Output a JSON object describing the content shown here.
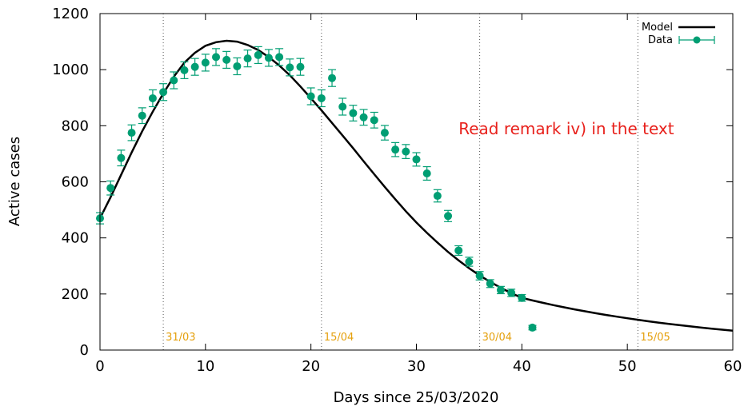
{
  "chart_data": {
    "type": "scatter",
    "xlabel": "Days since 25/03/2020",
    "ylabel": "Active cases",
    "xlim": [
      0,
      60
    ],
    "ylim": [
      0,
      1200
    ],
    "xticks": [
      0,
      10,
      20,
      30,
      40,
      50,
      60
    ],
    "yticks": [
      0,
      200,
      400,
      600,
      800,
      1000,
      1200
    ],
    "grid": false,
    "legend_position": "top-right",
    "annotation": {
      "text": "Read remark iv) in the text",
      "color": "#e8211c",
      "x": 34,
      "y": 790
    },
    "date_markers": [
      {
        "day": 6,
        "label": "31/03"
      },
      {
        "day": 21,
        "label": "15/04"
      },
      {
        "day": 36,
        "label": "30/04"
      },
      {
        "day": 51,
        "label": "15/05"
      }
    ],
    "date_marker_color": "#e5a00d",
    "series": [
      {
        "name": "Model",
        "kind": "line",
        "color": "#000000",
        "x": [
          0,
          1,
          2,
          3,
          4,
          5,
          6,
          7,
          8,
          9,
          10,
          11,
          12,
          13,
          14,
          15,
          16,
          17,
          18,
          19,
          20,
          21,
          22,
          23,
          24,
          25,
          26,
          27,
          28,
          29,
          30,
          31,
          32,
          33,
          34,
          35,
          36,
          37,
          38,
          39,
          40,
          42,
          44,
          46,
          48,
          50,
          52,
          54,
          56,
          58,
          60
        ],
        "y": [
          470,
          545,
          625,
          705,
          780,
          850,
          915,
          975,
          1025,
          1060,
          1085,
          1098,
          1103,
          1100,
          1088,
          1070,
          1045,
          1015,
          980,
          940,
          898,
          855,
          810,
          765,
          720,
          673,
          627,
          582,
          538,
          495,
          455,
          418,
          383,
          350,
          320,
          292,
          266,
          243,
          222,
          203,
          186,
          158,
          135,
          117,
          101,
          88,
          112,
          100,
          88,
          78,
          68
        ]
      },
      {
        "name": "Data",
        "kind": "points-with-errorbars",
        "color": "#009e73",
        "x": [
          0,
          1,
          2,
          3,
          4,
          5,
          6,
          7,
          8,
          9,
          10,
          11,
          12,
          13,
          14,
          15,
          16,
          17,
          18,
          19,
          20,
          21,
          22,
          23,
          24,
          25,
          26,
          27,
          28,
          29,
          30,
          31,
          32,
          33,
          34,
          35,
          36,
          37,
          38,
          39,
          40,
          41
        ],
        "y": [
          470,
          578,
          685,
          775,
          836,
          898,
          920,
          962,
          998,
          1010,
          1025,
          1045,
          1035,
          1012,
          1040,
          1052,
          1042,
          1045,
          1008,
          1010,
          905,
          898,
          970,
          868,
          845,
          830,
          820,
          775,
          715,
          708,
          680,
          630,
          550,
          478,
          355,
          315,
          265,
          237,
          214,
          204,
          186,
          80
        ],
        "err": [
          20,
          25,
          28,
          28,
          28,
          30,
          30,
          30,
          30,
          30,
          30,
          30,
          30,
          30,
          30,
          30,
          30,
          30,
          30,
          30,
          30,
          30,
          30,
          30,
          28,
          28,
          28,
          26,
          25,
          25,
          24,
          24,
          22,
          20,
          17,
          16,
          15,
          14,
          13,
          13,
          12,
          8
        ]
      }
    ]
  }
}
